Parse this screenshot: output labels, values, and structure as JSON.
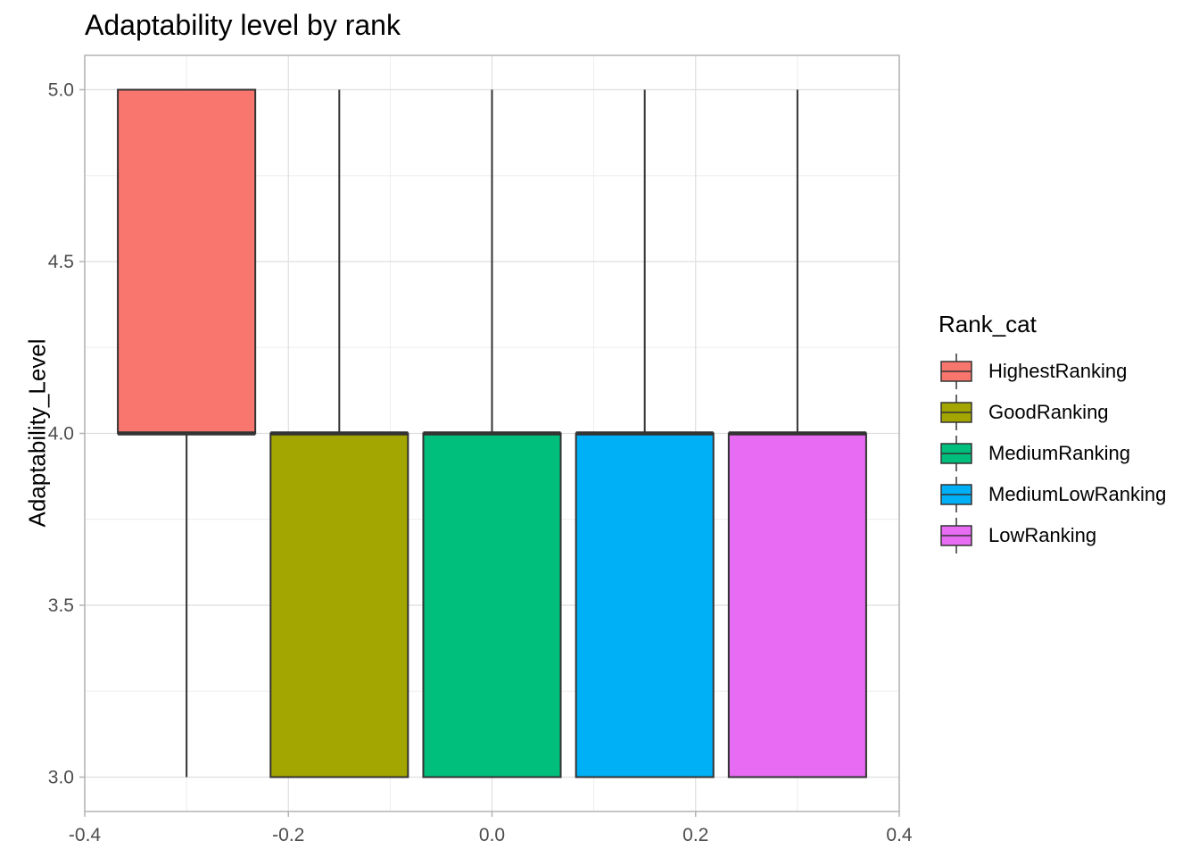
{
  "chart_data": {
    "type": "boxplot",
    "title": "Adaptability level by rank",
    "xlabel": "",
    "ylabel": "Adaptability_Level",
    "xlim": [
      -0.4,
      0.4
    ],
    "ylim": [
      3.0,
      5.0
    ],
    "x_ticks": [
      "-0.4",
      "-0.2",
      "0.0",
      "0.2",
      "0.4"
    ],
    "y_ticks": [
      "3.0",
      "3.5",
      "4.0",
      "4.5",
      "5.0"
    ],
    "grid": true,
    "legend_title": "Rank_cat",
    "legend_position": "right",
    "series": [
      {
        "name": "HighestRanking",
        "color": "#F8766D",
        "x": -0.3,
        "whisker_low": 3.0,
        "q1": 4.0,
        "median": 4.0,
        "q3": 5.0,
        "whisker_high": 5.0
      },
      {
        "name": "GoodRanking",
        "color": "#A3A500",
        "x": -0.15,
        "whisker_low": 3.0,
        "q1": 3.0,
        "median": 4.0,
        "q3": 4.0,
        "whisker_high": 5.0
      },
      {
        "name": "MediumRanking",
        "color": "#00BF7D",
        "x": 0.0,
        "whisker_low": 3.0,
        "q1": 3.0,
        "median": 4.0,
        "q3": 4.0,
        "whisker_high": 5.0
      },
      {
        "name": "MediumLowRanking",
        "color": "#00B0F6",
        "x": 0.15,
        "whisker_low": 3.0,
        "q1": 3.0,
        "median": 4.0,
        "q3": 4.0,
        "whisker_high": 5.0
      },
      {
        "name": "LowRanking",
        "color": "#E76BF3",
        "x": 0.3,
        "whisker_low": 3.0,
        "q1": 3.0,
        "median": 4.0,
        "q3": 4.0,
        "whisker_high": 5.0
      }
    ]
  }
}
